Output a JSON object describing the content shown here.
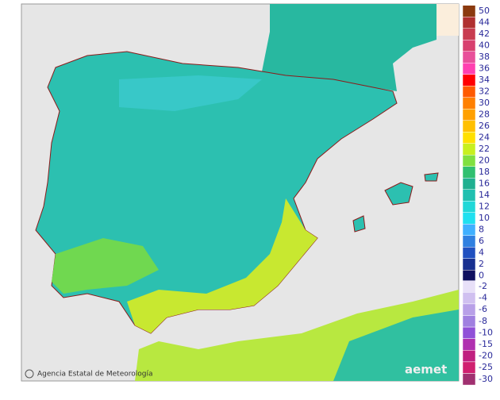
{
  "legend": {
    "entries": [
      {
        "label": "50",
        "color": "#8b3a0f"
      },
      {
        "label": "44",
        "color": "#b03030"
      },
      {
        "label": "42",
        "color": "#c83c50"
      },
      {
        "label": "40",
        "color": "#d84070"
      },
      {
        "label": "38",
        "color": "#e8509a"
      },
      {
        "label": "36",
        "color": "#ff40b0"
      },
      {
        "label": "34",
        "color": "#ff0000"
      },
      {
        "label": "32",
        "color": "#ff5a00"
      },
      {
        "label": "30",
        "color": "#ff8000"
      },
      {
        "label": "28",
        "color": "#ffa000"
      },
      {
        "label": "26",
        "color": "#ffc000"
      },
      {
        "label": "24",
        "color": "#ffe000"
      },
      {
        "label": "22",
        "color": "#c8f020"
      },
      {
        "label": "20",
        "color": "#80e040"
      },
      {
        "label": "18",
        "color": "#30c070"
      },
      {
        "label": "16",
        "color": "#20b090"
      },
      {
        "label": "14",
        "color": "#20c0b0"
      },
      {
        "label": "12",
        "color": "#20d8d8"
      },
      {
        "label": "10",
        "color": "#20e0f0"
      },
      {
        "label": "8",
        "color": "#40b0ff"
      },
      {
        "label": "6",
        "color": "#3080e0"
      },
      {
        "label": "4",
        "color": "#2050c0"
      },
      {
        "label": "2",
        "color": "#183090"
      },
      {
        "label": "0",
        "color": "#101060"
      }
    ],
    "negative_entries": [
      {
        "label": "-2",
        "color": "#e8e0f8"
      },
      {
        "label": "-4",
        "color": "#d0c0f0"
      },
      {
        "label": "-6",
        "color": "#b8a0e8"
      },
      {
        "label": "-8",
        "color": "#a080e0"
      },
      {
        "label": "-10",
        "color": "#9050d8"
      },
      {
        "label": "-15",
        "color": "#b030b0"
      },
      {
        "label": "-20",
        "color": "#c02080"
      },
      {
        "label": "-25",
        "color": "#d02070"
      },
      {
        "label": "-30",
        "color": "#a03070"
      }
    ]
  },
  "footer": {
    "agency": "Agencia Estatal de Meteorología",
    "logo": "aemet"
  }
}
